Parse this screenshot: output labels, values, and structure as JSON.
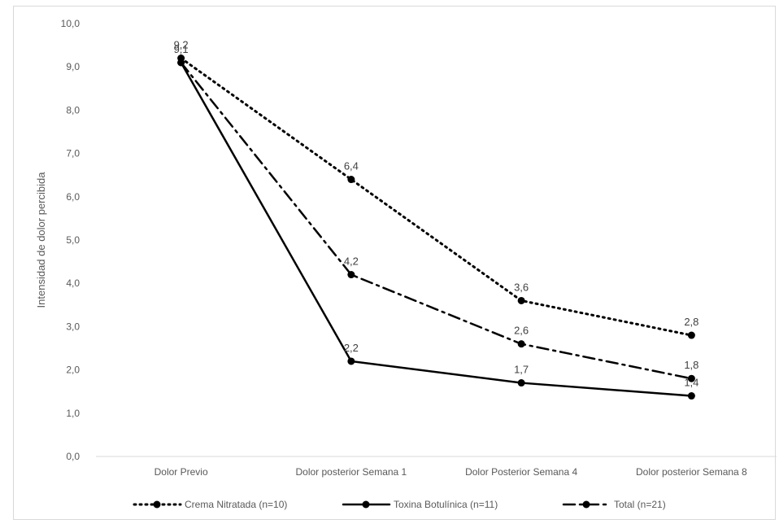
{
  "chart_data": {
    "type": "line",
    "title": "",
    "xlabel": "",
    "ylabel": "Intensidad de dolor percibida",
    "categories": [
      "Dolor Previo",
      "Dolor posterior Semana 1",
      "Dolor Posterior Semana 4",
      "Dolor posterior Semana 8"
    ],
    "ylim": [
      0,
      10
    ],
    "ytick_step": 1,
    "ytick_labels": [
      "0,0",
      "1,0",
      "2,0",
      "3,0",
      "4,0",
      "5,0",
      "6,0",
      "7,0",
      "8,0",
      "9,0",
      "10,0"
    ],
    "grid": false,
    "legend_position": "bottom",
    "series": [
      {
        "name": "Crema Nitratada (n=10)",
        "values": [
          9.2,
          6.4,
          3.6,
          2.8
        ],
        "labels": [
          "9,2",
          "6,4",
          "3,6",
          "2,8"
        ],
        "style": "dotted",
        "color": "#000000"
      },
      {
        "name": "Toxina Botulínica (n=11)",
        "values": [
          9.1,
          2.2,
          1.7,
          1.4
        ],
        "labels": [
          "9,1",
          "2,2",
          "1,7",
          "1,4"
        ],
        "style": "solid",
        "color": "#000000"
      },
      {
        "name": "Total (n=21)",
        "values": [
          9.1,
          4.2,
          2.6,
          1.8
        ],
        "labels": [
          "",
          "4,2",
          "2,6",
          "1,8"
        ],
        "style": "dashdot",
        "color": "#000000"
      }
    ]
  }
}
